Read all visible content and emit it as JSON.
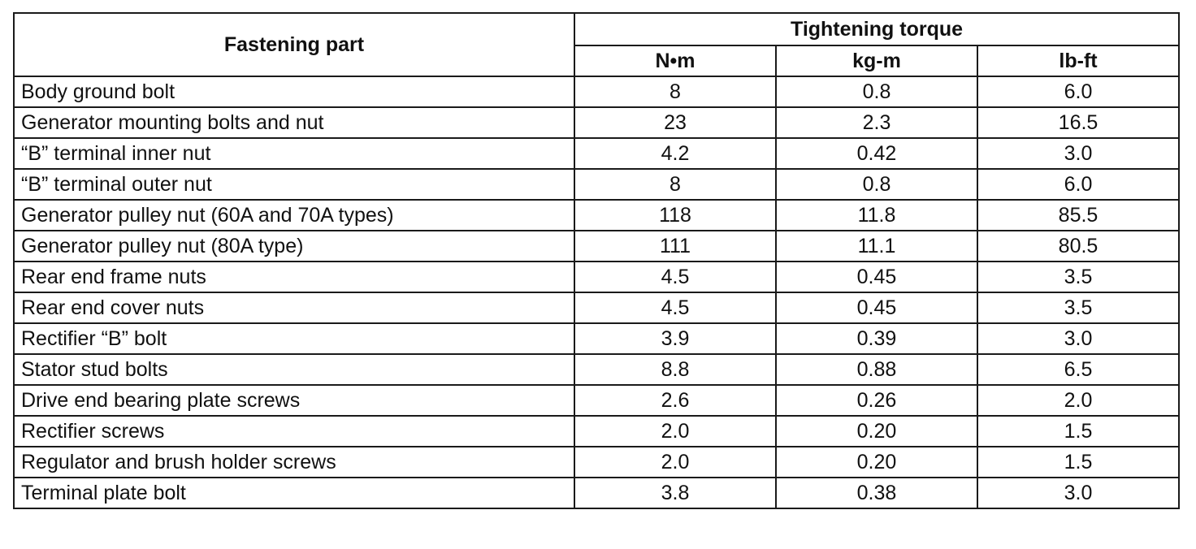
{
  "table": {
    "header": {
      "part_label": "Fastening part",
      "group_label": "Tightening torque",
      "units": [
        "N•m",
        "kg-m",
        "lb-ft"
      ]
    },
    "rows": [
      {
        "part": "Body ground bolt",
        "nm": "8",
        "kgm": "0.8",
        "lbft": "6.0"
      },
      {
        "part": "Generator mounting bolts and nut",
        "nm": "23",
        "kgm": "2.3",
        "lbft": "16.5"
      },
      {
        "part": "“B” terminal inner nut",
        "nm": "4.2",
        "kgm": "0.42",
        "lbft": "3.0"
      },
      {
        "part": "“B” terminal outer nut",
        "nm": "8",
        "kgm": "0.8",
        "lbft": "6.0"
      },
      {
        "part": "Generator pulley nut (60A and 70A types)",
        "nm": "118",
        "kgm": "11.8",
        "lbft": "85.5"
      },
      {
        "part": "Generator pulley nut (80A type)",
        "nm": "111",
        "kgm": "11.1",
        "lbft": "80.5"
      },
      {
        "part": "Rear end frame nuts",
        "nm": "4.5",
        "kgm": "0.45",
        "lbft": "3.5"
      },
      {
        "part": "Rear end cover nuts",
        "nm": "4.5",
        "kgm": "0.45",
        "lbft": "3.5"
      },
      {
        "part": "Rectifier “B” bolt",
        "nm": "3.9",
        "kgm": "0.39",
        "lbft": "3.0"
      },
      {
        "part": "Stator stud bolts",
        "nm": "8.8",
        "kgm": "0.88",
        "lbft": "6.5"
      },
      {
        "part": "Drive end bearing plate screws",
        "nm": "2.6",
        "kgm": "0.26",
        "lbft": "2.0"
      },
      {
        "part": "Rectifier screws",
        "nm": "2.0",
        "kgm": "0.20",
        "lbft": "1.5"
      },
      {
        "part": "Regulator and brush holder screws",
        "nm": "2.0",
        "kgm": "0.20",
        "lbft": "1.5"
      },
      {
        "part": "Terminal plate bolt",
        "nm": "3.8",
        "kgm": "0.38",
        "lbft": "3.0"
      }
    ]
  }
}
